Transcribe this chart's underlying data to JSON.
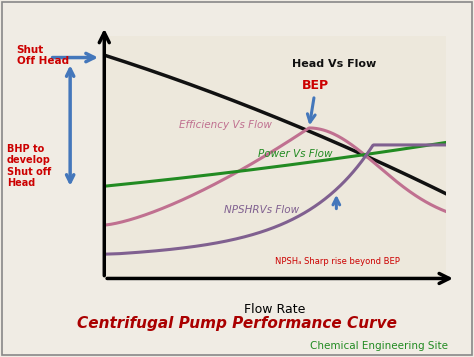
{
  "title": "Centrifugal Pump Performance Curve",
  "subtitle": "Chemical Engineering Site",
  "xlabel": "Flow Rate",
  "bg_color": "#f0ece4",
  "chart_bg": "#ede8dc",
  "title_color": "#aa0000",
  "subtitle_color": "#228B22",
  "curves": {
    "head": {
      "label": "Head Vs Flow",
      "color": "#111111",
      "lw": 2.5
    },
    "efficiency": {
      "label": "Efficiency Vs Flow",
      "color": "#c07090",
      "lw": 2.2
    },
    "power": {
      "label": "Power Vs Flow",
      "color": "#228B22",
      "lw": 2.2
    },
    "npshr": {
      "label": "NPSHRVs Flow",
      "color": "#806090",
      "lw": 2.2
    }
  },
  "bep_color": "#cc0000",
  "arrow_color": "#4477bb",
  "shut_off_head_text": "Shut\nOff Head",
  "bhp_text": "BHP to\ndevelop\nShut off\nHead",
  "bep_text": "BEP",
  "npsh_note": "NPSHₐ Sharp rise beyond BEP",
  "label_color": "#111111"
}
